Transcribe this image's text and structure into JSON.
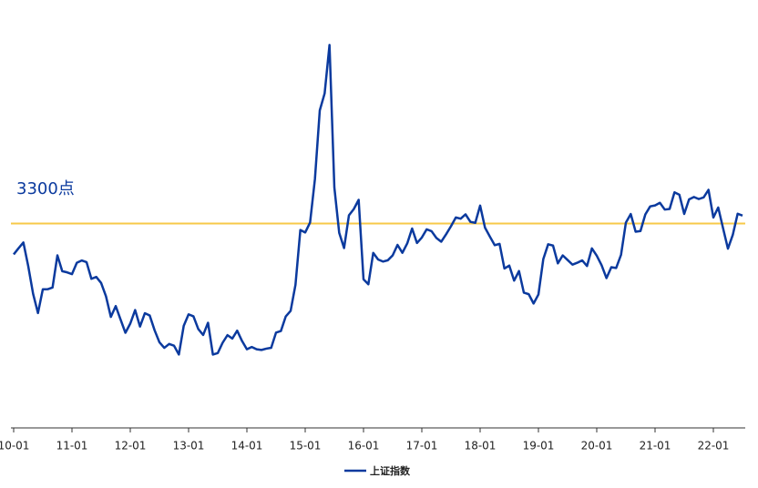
{
  "chart_data": {
    "type": "line",
    "categories": [
      "10-01",
      null,
      null,
      null,
      null,
      null,
      null,
      null,
      null,
      null,
      null,
      null,
      "11-01",
      null,
      null,
      null,
      null,
      null,
      null,
      null,
      null,
      null,
      null,
      null,
      "12-01",
      null,
      null,
      null,
      null,
      null,
      null,
      null,
      null,
      null,
      null,
      null,
      "13-01",
      null,
      null,
      null,
      null,
      null,
      null,
      null,
      null,
      null,
      null,
      null,
      "14-01",
      null,
      null,
      null,
      null,
      null,
      null,
      null,
      null,
      null,
      null,
      null,
      "15-01",
      null,
      null,
      null,
      null,
      null,
      null,
      null,
      null,
      null,
      null,
      null,
      "16-01",
      null,
      null,
      null,
      null,
      null,
      null,
      null,
      null,
      null,
      null,
      null,
      "17-01",
      null,
      null,
      null,
      null,
      null,
      null,
      null,
      null,
      null,
      null,
      null,
      "18-01",
      null,
      null,
      null,
      null,
      null,
      null,
      null,
      null,
      null,
      null,
      null,
      "19-01",
      null,
      null,
      null,
      null,
      null,
      null,
      null,
      null,
      null,
      null,
      null,
      "20-01",
      null,
      null,
      null,
      null,
      null,
      null,
      null,
      null,
      null,
      null,
      null,
      "21-01",
      null,
      null,
      null,
      null,
      null,
      null,
      null,
      null,
      null,
      null,
      null,
      "22-01",
      null,
      null,
      null,
      null,
      null,
      null
    ],
    "series": [
      {
        "name": "上证指数",
        "color": "#0b3a9e",
        "values": [
          2989,
          3051,
          3109,
          2870,
          2592,
          2398,
          2637,
          2638,
          2655,
          2979,
          2820,
          2808,
          2790,
          2905,
          2928,
          2911,
          2743,
          2762,
          2701,
          2567,
          2359,
          2468,
          2333,
          2199,
          2292,
          2428,
          2262,
          2396,
          2373,
          2225,
          2103,
          2047,
          2086,
          2069,
          1980,
          2269,
          2385,
          2365,
          2236,
          2177,
          2300,
          1979,
          1994,
          2098,
          2175,
          2141,
          2220,
          2116,
          2033,
          2056,
          2033,
          2026,
          2039,
          2048,
          2201,
          2217,
          2364,
          2420,
          2683,
          3235,
          3210,
          3310,
          3748,
          4441,
          4612,
          5100,
          3664,
          3206,
          3053,
          3383,
          3446,
          3539,
          2738,
          2688,
          3004,
          2938,
          2917,
          2930,
          2979,
          3085,
          3005,
          3100,
          3250,
          3104,
          3159,
          3242,
          3223,
          3155,
          3117,
          3192,
          3273,
          3361,
          3349,
          3393,
          3317,
          3307,
          3481,
          3259,
          3169,
          3082,
          3095,
          2847,
          2876,
          2725,
          2821,
          2603,
          2588,
          2494,
          2585,
          2941,
          3091,
          3078,
          2899,
          2979,
          2933,
          2886,
          2905,
          2929,
          2872,
          3050,
          2976,
          2880,
          2750,
          2860,
          2852,
          2985,
          3310,
          3396,
          3218,
          3225,
          3392,
          3473,
          3483,
          3509,
          3441,
          3447,
          3615,
          3591,
          3397,
          3544,
          3568,
          3547,
          3564,
          3640,
          3361,
          3462,
          3252,
          3047,
          3186,
          3399,
          3380
        ]
      }
    ],
    "reference_line": {
      "value": 3300,
      "label": "3300点",
      "color": "#f7c948"
    },
    "ylim": [
      1240,
      5370
    ]
  }
}
